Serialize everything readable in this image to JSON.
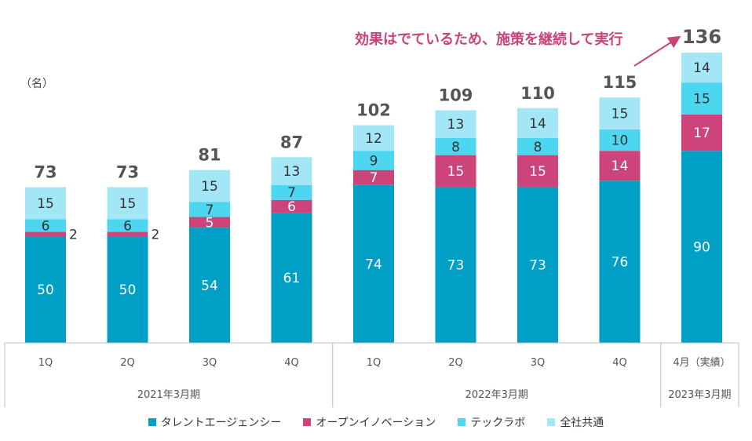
{
  "chart_data": {
    "type": "bar",
    "stacked": true,
    "unit_label": "（名）",
    "annotation": "効果はでているため、施策を継続して実行",
    "categories": [
      "1Q",
      "2Q",
      "3Q",
      "4Q",
      "1Q",
      "2Q",
      "3Q",
      "4Q",
      "4月（実績）"
    ],
    "groups": [
      {
        "label": "2021年3月期",
        "start": 0,
        "end": 3
      },
      {
        "label": "2022年3月期",
        "start": 4,
        "end": 7
      },
      {
        "label": "2023年3月期",
        "start": 8,
        "end": 8
      }
    ],
    "totals": [
      73,
      73,
      81,
      87,
      102,
      109,
      110,
      115,
      136
    ],
    "series": [
      {
        "name": "タレントエージェンシー",
        "color": "#00a0c6",
        "values": [
          50,
          50,
          54,
          61,
          74,
          73,
          73,
          76,
          90
        ]
      },
      {
        "name": "オープンイノベーション",
        "color": "#cc4479",
        "values": [
          2,
          2,
          5,
          6,
          7,
          15,
          15,
          14,
          17
        ]
      },
      {
        "name": "テックラボ",
        "color": "#4dd6f0",
        "values": [
          6,
          6,
          7,
          7,
          9,
          8,
          8,
          10,
          15
        ]
      },
      {
        "name": "全社共通",
        "color": "#a3e7f7",
        "values": [
          15,
          15,
          15,
          13,
          12,
          13,
          14,
          15,
          14
        ]
      }
    ]
  }
}
